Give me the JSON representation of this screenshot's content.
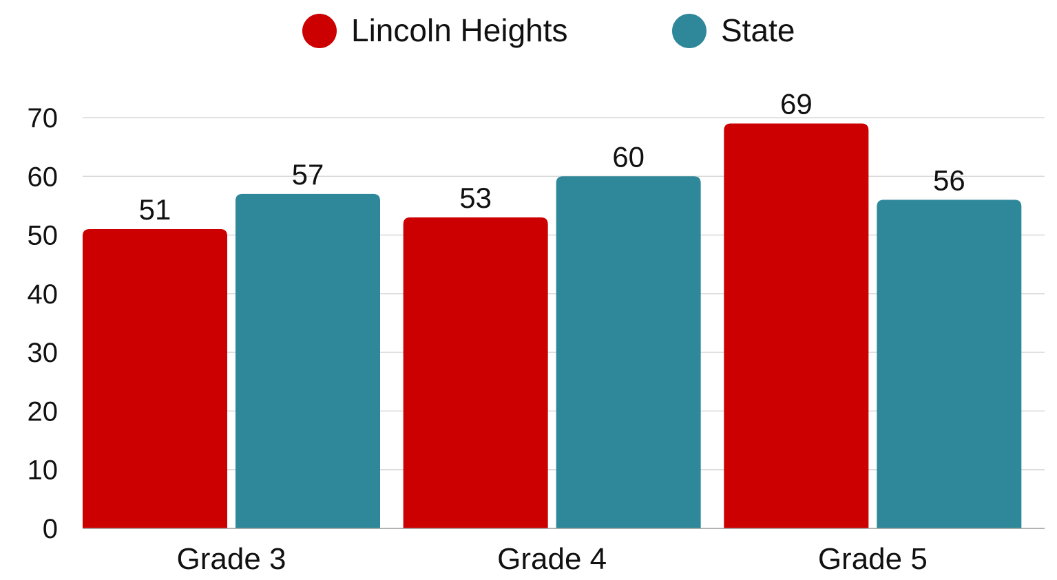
{
  "chart_data": {
    "type": "bar",
    "categories": [
      "Grade 3",
      "Grade 4",
      "Grade 5"
    ],
    "series": [
      {
        "name": "Lincoln Heights",
        "color": "#cc0000",
        "values": [
          51,
          53,
          69
        ]
      },
      {
        "name": "State",
        "color": "#2f8899",
        "values": [
          57,
          60,
          56
        ]
      }
    ],
    "ylim": [
      0,
      70
    ],
    "yticks": [
      0,
      10,
      20,
      30,
      40,
      50,
      60,
      70
    ],
    "grid": true,
    "legend": "top-center",
    "title": "",
    "xlabel": "",
    "ylabel": ""
  }
}
